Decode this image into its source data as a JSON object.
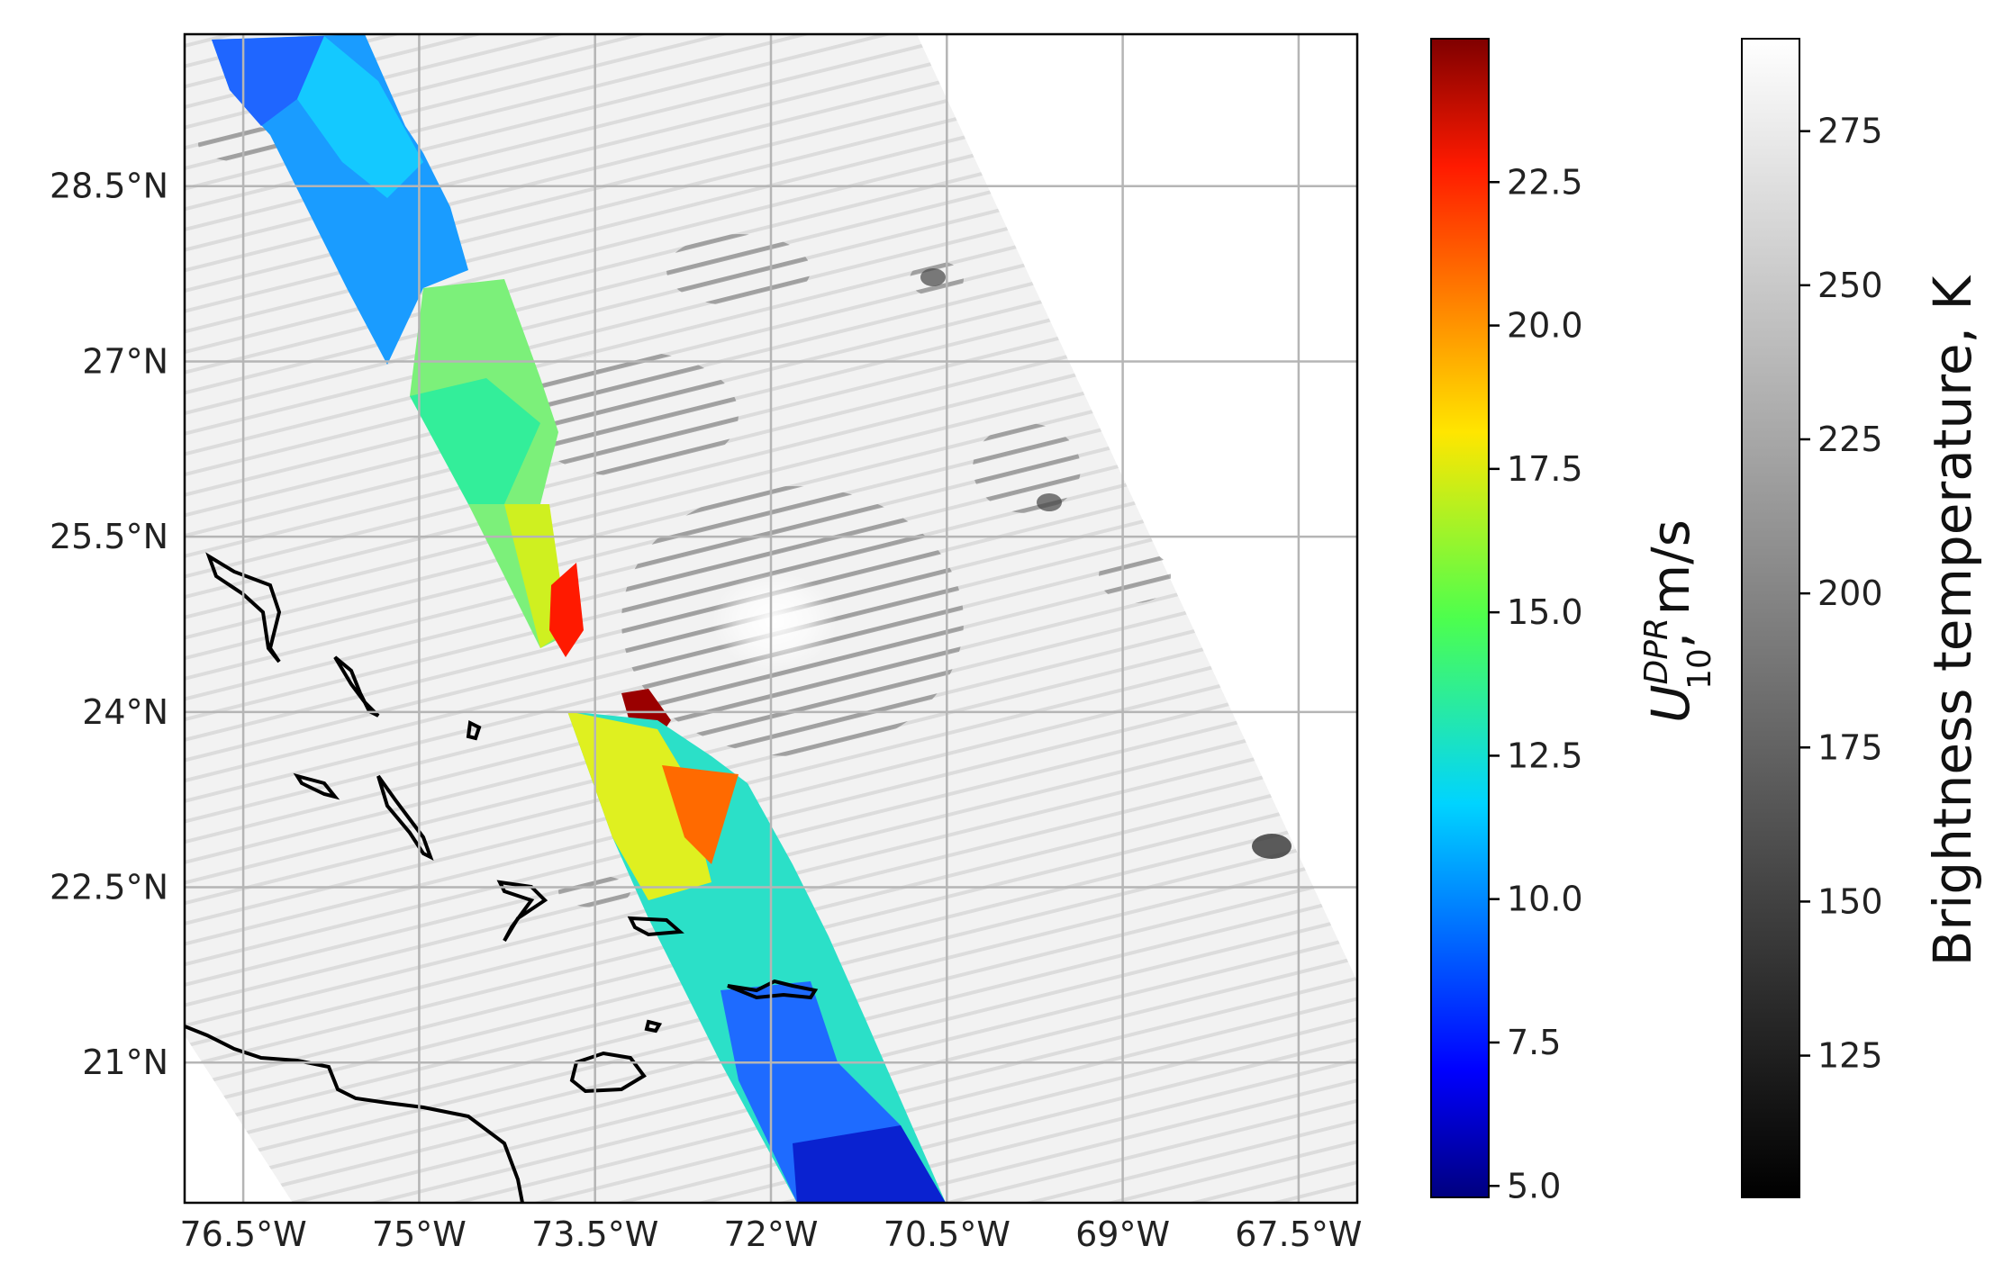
{
  "map": {
    "lon_ticks": [
      "76.5°W",
      "75°W",
      "73.5°W",
      "72°W",
      "70.5°W",
      "69°W",
      "67.5°W"
    ],
    "lon_values": [
      -76.5,
      -75,
      -73.5,
      -72,
      -70.5,
      -69,
      -67.5
    ],
    "lat_ticks": [
      "28.5°N",
      "27°N",
      "25.5°N",
      "24°N",
      "22.5°N",
      "21°N"
    ],
    "lat_values": [
      28.5,
      27,
      25.5,
      24,
      22.5,
      21
    ],
    "lon_range": [
      -77.0,
      -67.0
    ],
    "lat_range": [
      19.8,
      29.8
    ],
    "gridlines": true,
    "background_layer": "Brightness temperature swath (grayscale)",
    "overlay_layer": "DPR wind speed swath (jet colormap)"
  },
  "colorbars": {
    "wind": {
      "label_main": "U",
      "label_sup": "DPR",
      "label_sub": "10",
      "label_units": ", m/s",
      "ticks": [
        "5.0",
        "7.5",
        "10.0",
        "12.5",
        "15.0",
        "17.5",
        "20.0",
        "22.5"
      ],
      "tick_values": [
        5.0,
        7.5,
        10.0,
        12.5,
        15.0,
        17.5,
        20.0,
        22.5
      ],
      "range": [
        4.8,
        25.0
      ],
      "colormap": "jet"
    },
    "tb": {
      "label": "Brightness temperature, K",
      "ticks": [
        "125",
        "150",
        "175",
        "200",
        "225",
        "250",
        "275"
      ],
      "tick_values": [
        125,
        150,
        175,
        200,
        225,
        250,
        275
      ],
      "range": [
        102,
        290
      ],
      "colormap": "gray"
    }
  }
}
